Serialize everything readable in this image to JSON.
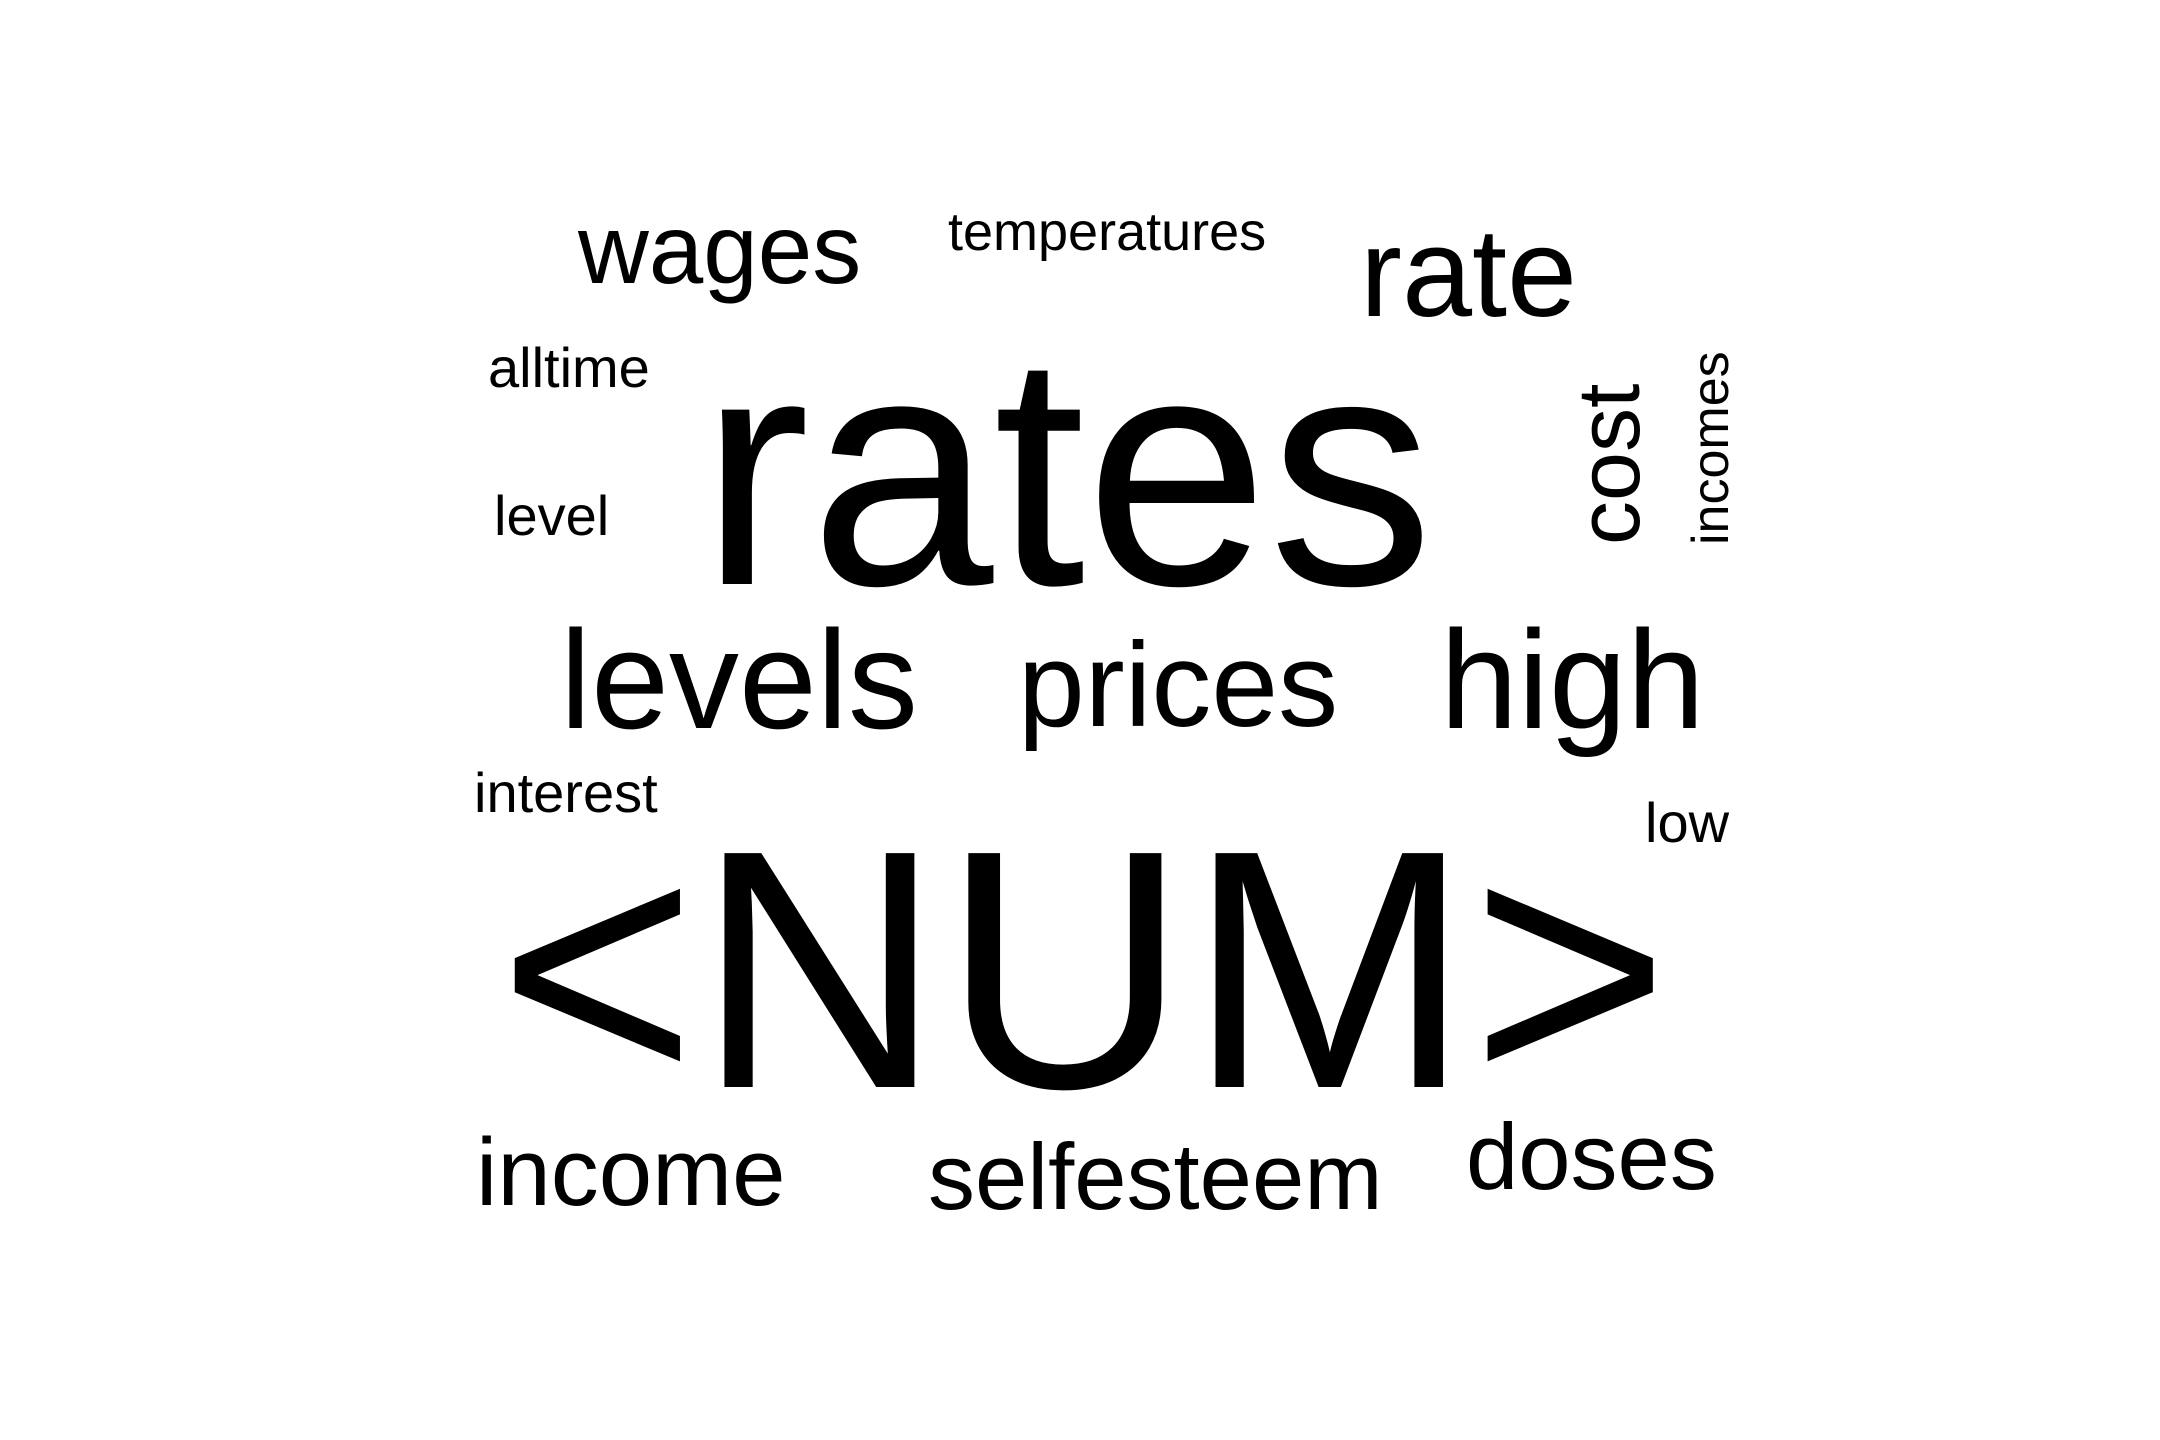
{
  "word_cloud": {
    "words": {
      "wages": "wages",
      "temperatures": "temperatures",
      "rate": "rate",
      "alltime": "alltime",
      "rates": "rates",
      "cost": "cost",
      "incomes": "incomes",
      "level": "level",
      "levels": "levels",
      "prices": "prices",
      "high": "high",
      "interest": "interest",
      "low": "low",
      "num": "<NUM>",
      "income": "income",
      "selfesteem": "selfesteem",
      "doses": "doses"
    },
    "text_color": "#000000",
    "background_color": "#ffffff"
  }
}
